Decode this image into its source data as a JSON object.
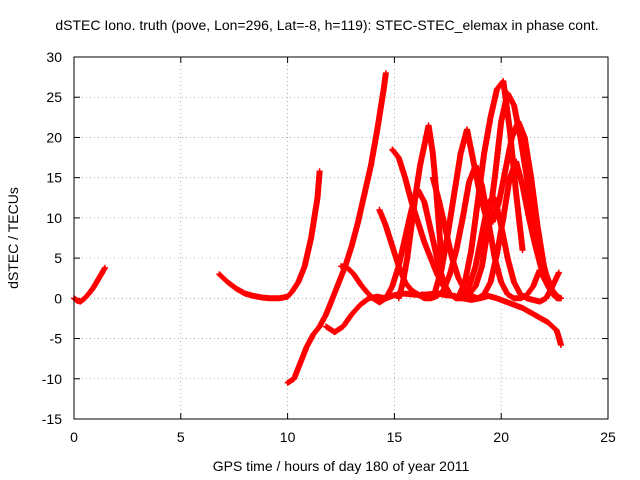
{
  "chart_data": {
    "type": "scatter",
    "title": "dSTEC Iono. truth (pove, Lon=296, Lat=-8, h=119): STEC-STEC_elemax in phase cont.",
    "xlabel": "GPS time / hours of day 180 of year 2011",
    "ylabel": "dSTEC  / TECUs",
    "xlim": [
      0,
      25
    ],
    "ylim": [
      -15,
      30
    ],
    "xticks": [
      0,
      5,
      10,
      15,
      20,
      25
    ],
    "yticks": [
      -15,
      -10,
      -5,
      0,
      5,
      10,
      15,
      20,
      25,
      30
    ],
    "grid": true,
    "marker": "plus",
    "color": "#ff0000",
    "series": [
      {
        "x": [
          0,
          0.15,
          0.3,
          0.5,
          0.7,
          0.9,
          1.1,
          1.3,
          1.45
        ],
        "y": [
          0,
          -0.3,
          -0.4,
          0,
          0.6,
          1.3,
          2.2,
          3.1,
          3.8
        ]
      },
      {
        "x": [
          6.8,
          7.2,
          7.6,
          8.0,
          8.4,
          8.8,
          9.2,
          9.6,
          10.0,
          10.2,
          10.5,
          10.8,
          11.1,
          11.4,
          11.5
        ],
        "y": [
          3.0,
          2.0,
          1.2,
          0.6,
          0.3,
          0.1,
          0.0,
          0.0,
          0.2,
          0.8,
          2.0,
          4.0,
          7.5,
          12.5,
          15.8
        ]
      },
      {
        "x": [
          10.0,
          10.3,
          10.6,
          10.9,
          11.2,
          11.5,
          11.8,
          12.1,
          12.4,
          12.7,
          13.0,
          13.3,
          13.6,
          13.9,
          14.2,
          14.5,
          14.6
        ],
        "y": [
          -10.5,
          -10.0,
          -8.0,
          -6.0,
          -4.5,
          -3.5,
          -2.0,
          0,
          2.0,
          4.0,
          6.5,
          9.5,
          13.0,
          16.5,
          21.0,
          26.0,
          28.0
        ]
      },
      {
        "x": [
          11.8,
          12.2,
          12.6,
          13.0,
          13.4,
          13.8,
          14.2,
          14.6,
          15.0,
          15.4,
          15.8,
          16.2,
          16.6,
          17.0,
          17.4,
          17.8,
          18.2,
          18.6,
          19.0,
          19.4,
          19.8,
          20.2,
          20.6,
          21.0,
          21.4,
          21.8,
          22.2,
          22.6,
          22.8
        ],
        "y": [
          -3.5,
          -4.2,
          -3.5,
          -2.0,
          -0.8,
          0.0,
          0.2,
          0.0,
          0.4,
          0.6,
          0.5,
          0.4,
          0.5,
          0.6,
          0.4,
          0.3,
          0.0,
          -0.2,
          0.0,
          0.3,
          0.0,
          -0.4,
          -0.8,
          -1.2,
          -1.8,
          -2.4,
          -3.0,
          -4.0,
          -5.8
        ]
      },
      {
        "x": [
          12.5,
          12.8,
          13.1,
          13.4,
          13.7,
          14.0,
          14.3,
          14.6,
          14.9,
          15.2,
          15.5,
          15.8,
          16.1,
          16.4,
          16.7,
          17.0,
          17.3,
          17.6,
          17.9,
          18.2,
          18.5,
          18.8,
          19.1,
          19.4,
          19.7,
          20.0,
          20.3,
          20.6,
          20.9,
          21.2,
          21.5,
          21.8,
          22.1,
          22.4,
          22.7
        ],
        "y": [
          4.0,
          3.8,
          3.0,
          1.8,
          0.8,
          0.0,
          -0.5,
          0.0,
          1.5,
          4.0,
          7.5,
          11.0,
          13.5,
          12.0,
          8.5,
          5.0,
          2.0,
          0.5,
          0.0,
          0.3,
          1.5,
          4.0,
          8.0,
          12.0,
          12.5,
          9.0,
          5.0,
          2.0,
          0.5,
          0.0,
          -0.2,
          -0.4,
          0.0,
          1.5,
          3.2
        ]
      },
      {
        "x": [
          14.3,
          14.6,
          14.9,
          15.2,
          15.5,
          15.8,
          16.1,
          16.4,
          16.7,
          17.0,
          17.3,
          17.6,
          17.9,
          18.2,
          18.5,
          18.8,
          19.1,
          19.4,
          19.7,
          20.0,
          20.3,
          20.6,
          20.9,
          21.2,
          21.5,
          21.8,
          22.1,
          22.4,
          22.7
        ],
        "y": [
          11.0,
          9.0,
          6.5,
          4.0,
          2.0,
          1.0,
          0.5,
          0.0,
          0.0,
          0.3,
          1.0,
          3.0,
          6.0,
          10.0,
          14.5,
          16.5,
          14.0,
          9.5,
          5.0,
          2.0,
          0.5,
          0.0,
          0.0,
          0.4,
          1.5,
          3.5,
          2.0,
          0.5,
          0.0
        ]
      },
      {
        "x": [
          14.9,
          15.2,
          15.5,
          15.8,
          16.1,
          16.4,
          16.7,
          17.0,
          17.3,
          17.6,
          17.9,
          18.2,
          18.5,
          18.8,
          19.1,
          19.4,
          19.7,
          20.0,
          20.3,
          20.6,
          20.9,
          21.2,
          21.5,
          21.8,
          22.1,
          22.4,
          22.7
        ],
        "y": [
          18.5,
          17.5,
          15.0,
          12.0,
          9.5,
          7.0,
          5.0,
          3.0,
          1.5,
          0.5,
          0.0,
          0.0,
          0.5,
          1.5,
          4.0,
          9.0,
          15.0,
          22.0,
          25.5,
          24.0,
          20.0,
          15.0,
          10.0,
          6.0,
          3.0,
          1.0,
          0.0
        ]
      },
      {
        "x": [
          15.2,
          15.4,
          15.6,
          15.8,
          16.0,
          16.2,
          16.4,
          16.6,
          16.8,
          17.0,
          17.2
        ],
        "y": [
          0.0,
          2.0,
          5.0,
          9.0,
          13.0,
          16.5,
          19.0,
          21.5,
          18.0,
          12.0,
          5.0
        ]
      },
      {
        "x": [
          16.3,
          16.6,
          16.9,
          17.2,
          17.5,
          17.8,
          18.1,
          18.4,
          18.7,
          19.0,
          19.3,
          19.6,
          19.9,
          20.2,
          20.5,
          20.8,
          21.1,
          21.4,
          21.7,
          22.0,
          22.3,
          22.6,
          22.8
        ],
        "y": [
          0.5,
          0.0,
          0.8,
          3.5,
          8.0,
          13.0,
          18.0,
          21.0,
          17.0,
          13.0,
          10.0,
          9.5,
          12.0,
          16.0,
          20.0,
          22.0,
          20.0,
          15.0,
          9.0,
          4.0,
          1.0,
          0.0,
          0.0
        ]
      },
      {
        "x": [
          16.8,
          17.1,
          17.4,
          17.7,
          18.0,
          18.3,
          18.6,
          18.9,
          19.2,
          19.5,
          19.8,
          20.1,
          20.4,
          20.7,
          21.0,
          21.3,
          21.6,
          21.9,
          22.2,
          22.5,
          22.8
        ],
        "y": [
          15.0,
          12.0,
          8.5,
          5.0,
          2.5,
          1.0,
          0.3,
          0.0,
          0.5,
          2.0,
          5.5,
          10.0,
          15.0,
          17.0,
          14.0,
          10.0,
          6.5,
          3.5,
          1.5,
          0.5,
          0.0
        ]
      },
      {
        "x": [
          18.0,
          18.3,
          18.6,
          18.9,
          19.2,
          19.5,
          19.8,
          20.1,
          20.4,
          20.7,
          21.0
        ],
        "y": [
          0.2,
          2.0,
          6.0,
          12.0,
          18.0,
          22.5,
          26.0,
          27.0,
          21.0,
          13.0,
          6.0
        ]
      }
    ]
  }
}
